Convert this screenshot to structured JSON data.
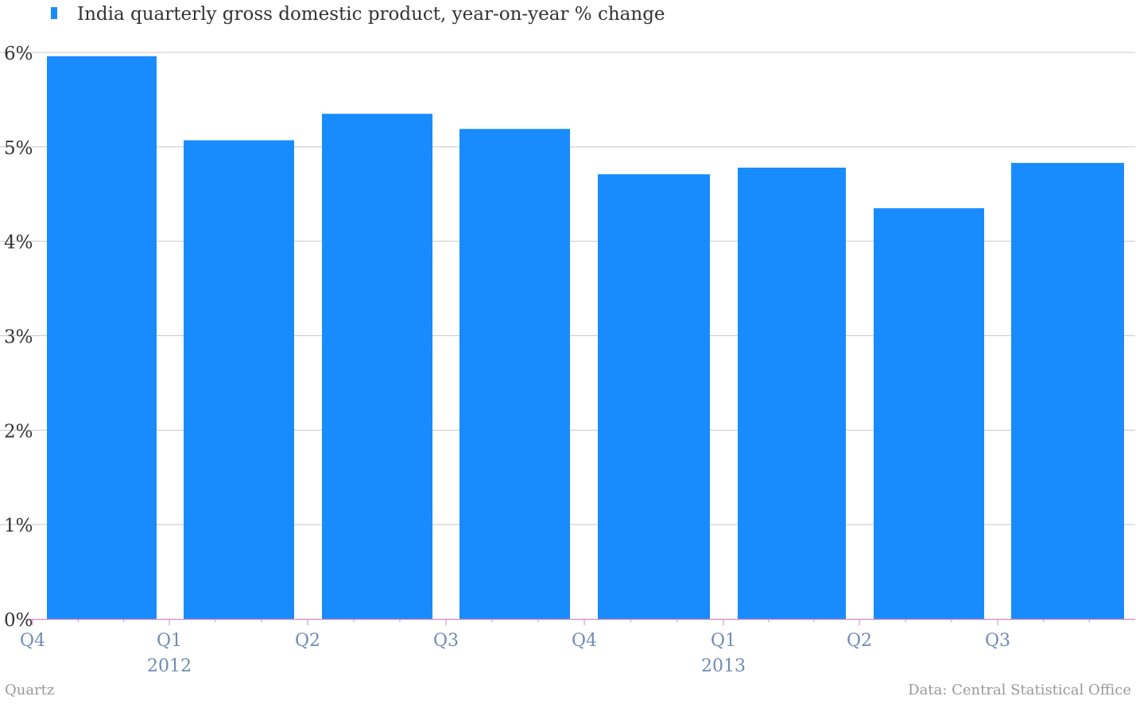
{
  "legend": {
    "label": "India quarterly gross domestic product, year-on-year % change"
  },
  "footer": {
    "left": "Quartz",
    "right": "Data: Central Statistical Office"
  },
  "colors": {
    "bar": "#188cff",
    "grid": "#c8c8c8",
    "axis_line": "#d886c8",
    "tick_text": "#6e8cb4",
    "y_text": "#333333",
    "footer_text": "#999999"
  },
  "chart_data": {
    "type": "bar",
    "categories": [
      "Q4",
      "Q1",
      "Q2",
      "Q3",
      "Q4",
      "Q1",
      "Q2",
      "Q3"
    ],
    "year_labels": [
      {
        "after_category_index": 1,
        "label": "2012"
      },
      {
        "after_category_index": 5,
        "label": "2013"
      }
    ],
    "series": [
      {
        "values": [
          5.96,
          5.07,
          5.35,
          5.19,
          4.71,
          4.78,
          4.35,
          4.83
        ]
      }
    ],
    "ylim": [
      0,
      6
    ],
    "yticks": [
      "0%",
      "1%",
      "2%",
      "3%",
      "4%",
      "5%",
      "6%"
    ],
    "grid": true,
    "legend_position": "top-left"
  }
}
